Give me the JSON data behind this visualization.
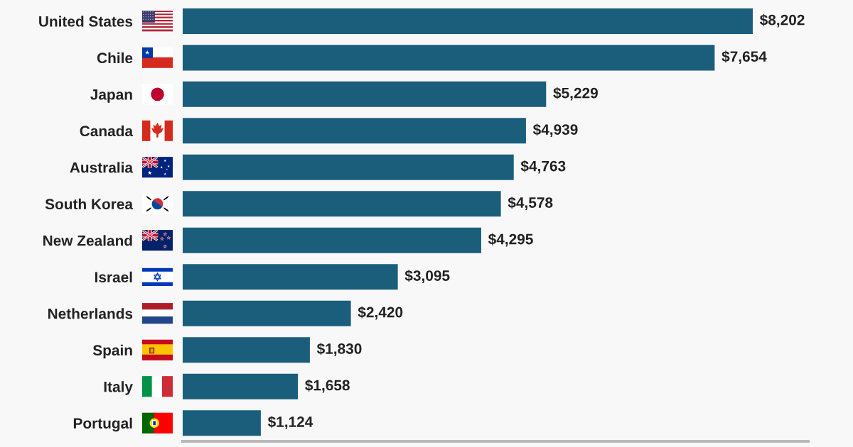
{
  "chart_data": {
    "type": "bar",
    "orientation": "horizontal",
    "categories": [
      "United States",
      "Chile",
      "Japan",
      "Canada",
      "Australia",
      "South Korea",
      "New Zealand",
      "Israel",
      "Netherlands",
      "Spain",
      "Italy",
      "Portugal"
    ],
    "values": [
      8202,
      7654,
      5229,
      4939,
      4763,
      4578,
      4295,
      3095,
      2420,
      1830,
      1658,
      1124
    ],
    "value_labels": [
      "$8,202",
      "$7,654",
      "$5,229",
      "$4,939",
      "$4,763",
      "$4,578",
      "$4,295",
      "$3,095",
      "$2,420",
      "$1,830",
      "$1,658",
      "$1,124"
    ],
    "color": "#1a5e7c",
    "xlim": [
      0,
      9000
    ],
    "tick_labels": "y"
  }
}
